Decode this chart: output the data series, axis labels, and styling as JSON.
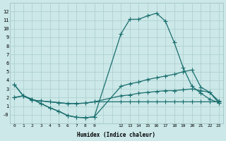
{
  "bg_color": "#cce8e8",
  "grid_color": "#aacccc",
  "line_color": "#1a6e6e",
  "series1_x": [
    0,
    1,
    2,
    3,
    4,
    5,
    6,
    7,
    8,
    9,
    12,
    13,
    14,
    15,
    16,
    17,
    18,
    19,
    20,
    21,
    22,
    23
  ],
  "series1_y": [
    3.5,
    2.2,
    1.8,
    1.3,
    0.8,
    0.4,
    -0.1,
    -0.3,
    -0.35,
    -0.25,
    9.4,
    11.1,
    11.1,
    11.5,
    11.8,
    10.9,
    8.4,
    5.5,
    3.3,
    2.5,
    1.8,
    1.4
  ],
  "series2_x": [
    0,
    1,
    2,
    3,
    4,
    5,
    6,
    7,
    8,
    9,
    12,
    13,
    14,
    15,
    16,
    17,
    18,
    19,
    20,
    21,
    22,
    23
  ],
  "series2_y": [
    3.5,
    2.2,
    1.8,
    1.3,
    0.8,
    0.4,
    -0.1,
    -0.3,
    -0.35,
    -0.25,
    3.3,
    3.6,
    3.8,
    4.1,
    4.3,
    4.5,
    4.7,
    5.0,
    5.2,
    3.2,
    2.6,
    1.4
  ],
  "series3_x": [
    0,
    1,
    2,
    3,
    4,
    5,
    6,
    7,
    8,
    9,
    12,
    13,
    14,
    15,
    16,
    17,
    18,
    19,
    20,
    21,
    22,
    23
  ],
  "series3_y": [
    2.0,
    2.2,
    1.7,
    1.6,
    1.5,
    1.4,
    1.3,
    1.3,
    1.35,
    1.5,
    2.2,
    2.3,
    2.5,
    2.6,
    2.7,
    2.8,
    2.8,
    2.9,
    3.0,
    2.8,
    2.6,
    1.6
  ],
  "series4_x": [
    0,
    1,
    2,
    3,
    4,
    5,
    6,
    7,
    8,
    9,
    12,
    13,
    14,
    15,
    16,
    17,
    18,
    19,
    20,
    21,
    22,
    23
  ],
  "series4_y": [
    2.0,
    2.2,
    1.7,
    1.6,
    1.5,
    1.4,
    1.3,
    1.3,
    1.35,
    1.5,
    1.5,
    1.5,
    1.5,
    1.5,
    1.5,
    1.5,
    1.5,
    1.5,
    1.5,
    1.5,
    1.5,
    1.5
  ],
  "ylim": [
    -1,
    13
  ],
  "yticks": [
    0,
    1,
    2,
    3,
    4,
    5,
    6,
    7,
    8,
    9,
    10,
    11,
    12
  ],
  "ytick_labels": [
    "-0",
    "1",
    "2",
    "3",
    "4",
    "5",
    "6",
    "7",
    "8",
    "9",
    "10",
    "11",
    "12"
  ],
  "xlabel": "Humidex (Indice chaleur)",
  "xtick_positions": [
    0,
    1,
    2,
    3,
    4,
    5,
    6,
    7,
    8,
    9,
    12,
    13,
    14,
    15,
    16,
    17,
    18,
    19,
    20,
    21,
    22,
    23
  ],
  "xtick_labels": [
    "0",
    "1",
    "2",
    "3",
    "4",
    "5",
    "6",
    "7",
    "8",
    "9",
    "12",
    "13",
    "14",
    "15",
    "16",
    "17",
    "18",
    "19",
    "20",
    "21",
    "22",
    "23"
  ],
  "marker": "+",
  "markersize": 4,
  "linewidth": 0.9
}
